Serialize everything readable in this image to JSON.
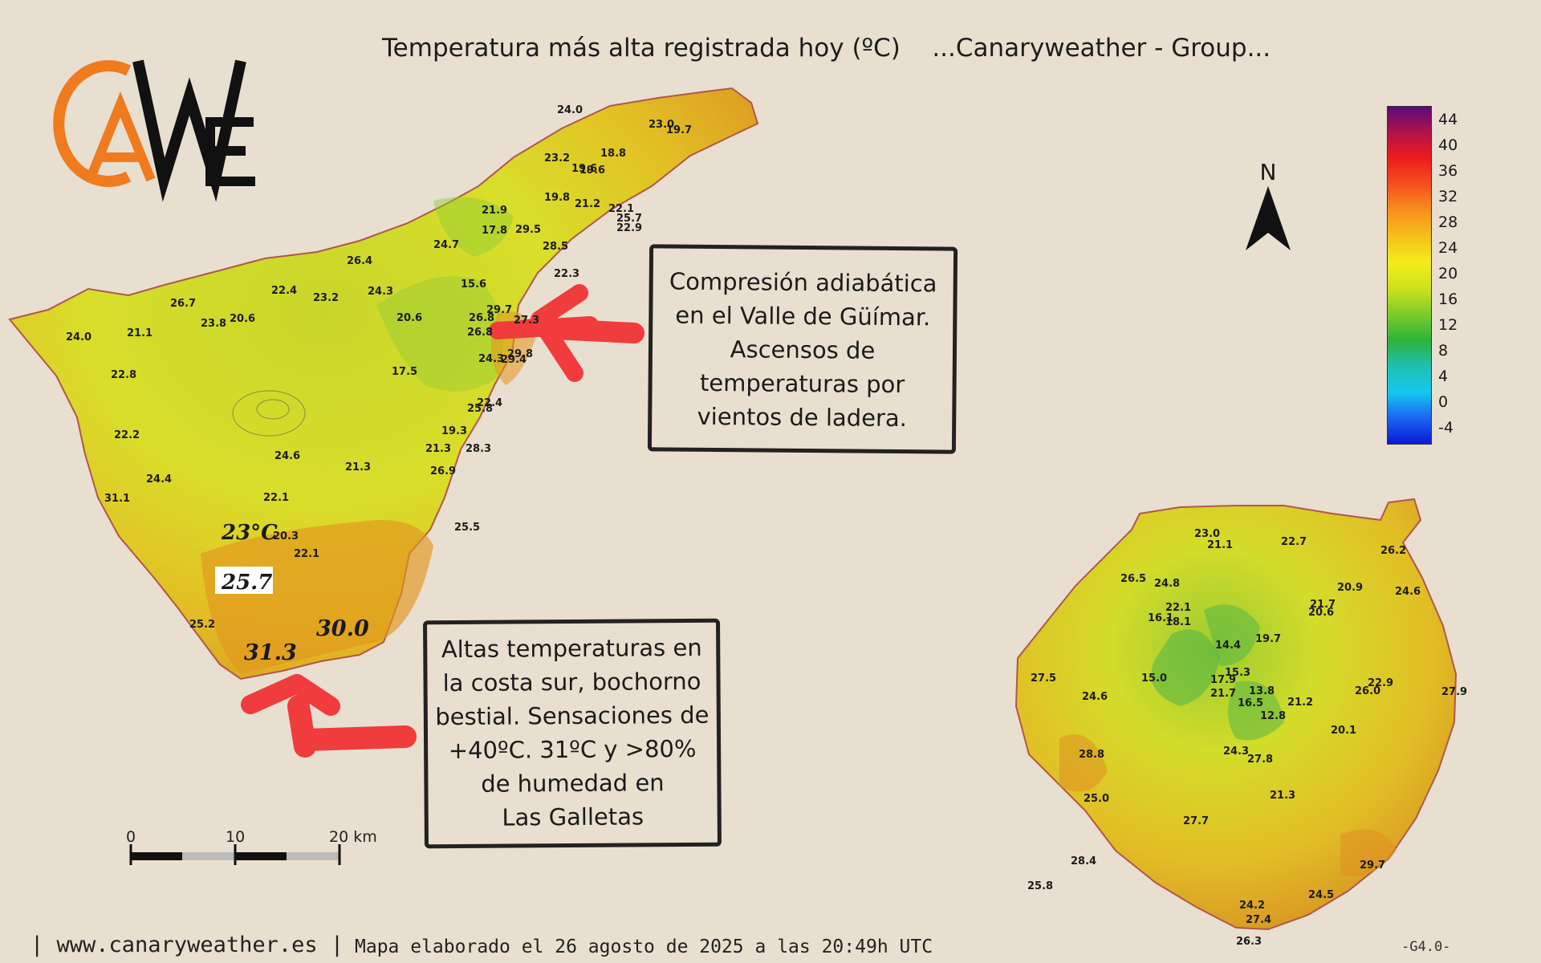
{
  "title": "Temperatura más alta registrada hoy (ºC)    ...Canaryweather - Group...",
  "logo": {
    "text": "CAWE",
    "colors": {
      "orange": "#f07a1e",
      "black": "#111111"
    }
  },
  "north_label": "N",
  "legend": {
    "labels": [
      "44",
      "40",
      "36",
      "32",
      "28",
      "24",
      "20",
      "16",
      "12",
      "8",
      "4",
      "0",
      "-4"
    ],
    "colors": [
      "#5a0a7a",
      "#b3124a",
      "#ee1c1c",
      "#f5501e",
      "#f7901c",
      "#f5c019",
      "#f4ec1a",
      "#cde21c",
      "#7ccc2a",
      "#2fb23c",
      "#1dc0b0",
      "#16c8f0",
      "#1a66f0",
      "#0c18d8"
    ]
  },
  "callouts": {
    "guimar": "Compresión adiabática\nen el Valle de Güímar.\nAscensos de\ntemperaturas por\nvientos de ladera.",
    "south": "Altas temperaturas en\nla costa sur, bochorno\nbestial. Sensaciones de\n+40ºC. 31ºC y >80%\nde humedad en\nLas Galletas"
  },
  "scale_bar": {
    "labels": [
      "0",
      "10",
      "20 km"
    ]
  },
  "footer": {
    "site": "| www.canaryweather.es |",
    "date": "Mapa elaborado el 26 agosto de 2025 a las 20:49h UTC",
    "code": "-G4.0-"
  },
  "tenerife_values": [
    "24.0",
    "23.0",
    "19.7",
    "23.2",
    "19.6",
    "18.8",
    "19.6",
    "19.8",
    "21.2",
    "22.1",
    "21.9",
    "17.8",
    "29.5",
    "25.7",
    "22.9",
    "24.7",
    "28.5",
    "26.4",
    "22.3",
    "22.4",
    "23.2",
    "24.3",
    "15.6",
    "26.7",
    "23.8",
    "20.6",
    "20.6",
    "26.8",
    "29.7",
    "27.3",
    "24.0",
    "21.1",
    "26.8",
    "29.8",
    "24.3",
    "29.4",
    "22.8",
    "17.5",
    "22.4",
    "25.8",
    "22.2",
    "19.3",
    "21.3",
    "28.3",
    "24.6",
    "21.3",
    "26.9",
    "24.4",
    "31.1",
    "22.1",
    "20.3",
    "22.1",
    "25.5",
    "25.2"
  ],
  "tenerife_highlights": {
    "upper": "23°C",
    "boxed": "25.7",
    "coast_east": "30.0",
    "coast_south": "31.3"
  },
  "gran_canaria_values": [
    "23.0",
    "21.1",
    "22.7",
    "26.2",
    "26.5",
    "24.8",
    "20.9",
    "24.6",
    "22.1",
    "18.1",
    "21.7",
    "20.6",
    "16.1",
    "14.4",
    "19.7",
    "15.0",
    "15.3",
    "27.5",
    "17.9",
    "22.9",
    "24.6",
    "21.7",
    "13.8",
    "26.0",
    "27.9",
    "16.5",
    "21.2",
    "12.8",
    "20.1",
    "28.8",
    "24.3",
    "27.8",
    "21.3",
    "25.0",
    "27.7",
    "28.4",
    "29.7",
    "25.8",
    "24.5",
    "24.2",
    "27.4",
    "26.3"
  ],
  "colors": {
    "background": "#e8dfd0",
    "annotation_red": "#f03c3c"
  }
}
